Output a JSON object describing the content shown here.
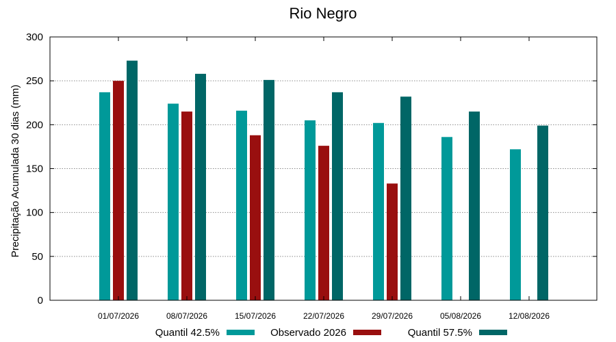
{
  "chart_data": {
    "type": "bar",
    "title": "Rio Negro",
    "xlabel": "",
    "ylabel": "Precipitação Acumulada 30 dias (mm)",
    "ylim": [
      0,
      300
    ],
    "yticks": [
      0,
      50,
      100,
      150,
      200,
      250,
      300
    ],
    "grid": true,
    "legend_position": "bottom",
    "categories": [
      "01/07/2026",
      "08/07/2026",
      "15/07/2026",
      "22/07/2026",
      "29/07/2026",
      "05/08/2026",
      "12/08/2026"
    ],
    "series": [
      {
        "name": "Quantil 42.5%",
        "color": "#009999",
        "values": [
          237,
          224,
          216,
          205,
          202,
          186,
          172
        ]
      },
      {
        "name": "Observado 2026",
        "color": "#990f0f",
        "values": [
          250,
          215,
          188,
          176,
          133,
          null,
          null
        ]
      },
      {
        "name": "Quantil 57.5%",
        "color": "#006666",
        "values": [
          273,
          258,
          251,
          237,
          232,
          215,
          199
        ]
      }
    ]
  }
}
